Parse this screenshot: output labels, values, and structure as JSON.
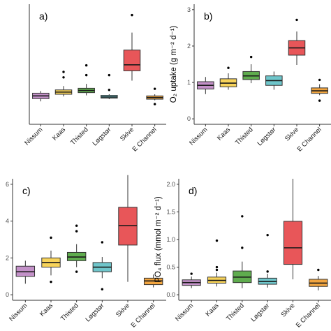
{
  "chart_data": [
    {
      "type": "box",
      "panel_label": "a)",
      "ylabel": "",
      "ylim": [
        0,
        1000
      ],
      "yticks": [],
      "categories": [
        "Nissum",
        "Kaas",
        "Thisted",
        "Løgstør",
        "Skive",
        "E Channel"
      ],
      "series": [
        {
          "min": 160,
          "q1": 185,
          "median": 210,
          "q3": 235,
          "max": 255,
          "outliers": []
        },
        {
          "min": 205,
          "q1": 225,
          "median": 245,
          "q3": 265,
          "max": 300,
          "outliers": [
            380,
            430
          ]
        },
        {
          "min": 215,
          "q1": 240,
          "median": 260,
          "q3": 280,
          "max": 320,
          "outliers": [
            400,
            490
          ]
        },
        {
          "min": 180,
          "q1": 190,
          "median": 200,
          "q3": 215,
          "max": 225,
          "outliers": [
            265,
            400
          ]
        },
        {
          "min": 350,
          "q1": 440,
          "median": 495,
          "q3": 630,
          "max": 790,
          "outliers": [
            950
          ]
        },
        {
          "min": 170,
          "q1": 180,
          "median": 195,
          "q3": 210,
          "max": 225,
          "outliers": [
            135,
            275
          ]
        }
      ]
    },
    {
      "type": "box",
      "panel_label": "b)",
      "ylabel": "O₂ uptake (g m⁻² d⁻¹)",
      "ylim": [
        0,
        3
      ],
      "yticks": [
        0,
        1,
        2,
        3
      ],
      "categories": [
        "Nissum",
        "Kaas",
        "Thisted",
        "Løgstør",
        "Skive",
        "E Channel"
      ],
      "series": [
        {
          "min": 0.68,
          "q1": 0.82,
          "median": 0.92,
          "q3": 1.02,
          "max": 1.15,
          "outliers": []
        },
        {
          "min": 0.8,
          "q1": 0.88,
          "median": 0.98,
          "q3": 1.1,
          "max": 1.25,
          "outliers": [
            1.4
          ]
        },
        {
          "min": 0.98,
          "q1": 1.08,
          "median": 1.18,
          "q3": 1.3,
          "max": 1.5,
          "outliers": [
            1.7
          ]
        },
        {
          "min": 0.8,
          "q1": 0.92,
          "median": 1.05,
          "q3": 1.18,
          "max": 1.3,
          "outliers": []
        },
        {
          "min": 1.48,
          "q1": 1.75,
          "median": 1.95,
          "q3": 2.15,
          "max": 2.4,
          "outliers": [
            2.72
          ]
        },
        {
          "min": 0.65,
          "q1": 0.7,
          "median": 0.77,
          "q3": 0.85,
          "max": 0.95,
          "outliers": [
            0.5,
            1.07
          ]
        }
      ]
    },
    {
      "type": "box",
      "panel_label": "c)",
      "ylabel": "",
      "ylim": [
        0,
        6
      ],
      "yticks": [
        0,
        2,
        4,
        6
      ],
      "categories": [
        "Nissum",
        "Kaas",
        "Thisted",
        "Løgstør",
        "Skive",
        "E Channel"
      ],
      "series": [
        {
          "min": 0.6,
          "q1": 1.0,
          "median": 1.25,
          "q3": 1.55,
          "max": 1.85,
          "outliers": []
        },
        {
          "min": 1.05,
          "q1": 1.5,
          "median": 1.75,
          "q3": 2.0,
          "max": 2.4,
          "outliers": [
            0.7,
            3.1
          ]
        },
        {
          "min": 1.5,
          "q1": 1.85,
          "median": 2.05,
          "q3": 2.3,
          "max": 2.75,
          "outliers": [
            1.25,
            3.45,
            3.75
          ]
        },
        {
          "min": 0.9,
          "q1": 1.25,
          "median": 1.5,
          "q3": 1.75,
          "max": 2.05,
          "outliers": [
            0.3,
            2.85
          ]
        },
        {
          "min": 0.7,
          "q1": 2.7,
          "median": 3.75,
          "q3": 4.75,
          "max": 6.5,
          "outliers": []
        },
        {
          "min": 0.4,
          "q1": 0.55,
          "median": 0.75,
          "q3": 0.9,
          "max": 1.1,
          "outliers": []
        }
      ]
    },
    {
      "type": "box",
      "panel_label": "d)",
      "ylabel": "PO₄ flux (mmol m⁻² d⁻¹)",
      "ylim": [
        0,
        2.0
      ],
      "yticks": [
        "0.0",
        "0.5",
        "1.0",
        "1.5",
        "2.0"
      ],
      "categories": [
        "Nissum",
        "Kaas",
        "Thisted",
        "Løgstør",
        "Skive",
        "E Channel"
      ],
      "series": [
        {
          "min": 0.12,
          "q1": 0.17,
          "median": 0.22,
          "q3": 0.27,
          "max": 0.33,
          "outliers": [
            0.38
          ]
        },
        {
          "min": 0.15,
          "q1": 0.21,
          "median": 0.26,
          "q3": 0.32,
          "max": 0.4,
          "outliers": [
            0.45,
            0.5,
            0.98
          ]
        },
        {
          "min": 0.12,
          "q1": 0.22,
          "median": 0.32,
          "q3": 0.43,
          "max": 0.6,
          "outliers": [
            0.85,
            1.42
          ]
        },
        {
          "min": 0.13,
          "q1": 0.19,
          "median": 0.24,
          "q3": 0.3,
          "max": 0.38,
          "outliers": [
            0.42,
            1.08
          ]
        },
        {
          "min": 0.28,
          "q1": 0.55,
          "median": 0.85,
          "q3": 1.33,
          "max": 2.1,
          "outliers": []
        },
        {
          "min": 0.08,
          "q1": 0.15,
          "median": 0.21,
          "q3": 0.28,
          "max": 0.34,
          "outliers": [
            0.45
          ]
        }
      ]
    }
  ],
  "colors": {
    "box_fills": [
      "#c391c8",
      "#f7d35a",
      "#5fac4e",
      "#6fc6cb",
      "#e85659",
      "#f2a53f"
    ],
    "box_stroke": "#333333",
    "axis": "#333333",
    "tick_text": "#4d4d4d"
  }
}
